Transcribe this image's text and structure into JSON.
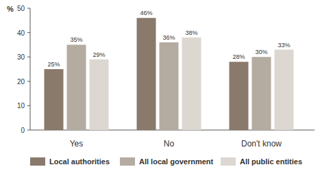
{
  "chart_data": {
    "type": "bar",
    "y_label": "%",
    "categories": [
      "Yes",
      "No",
      "Don't know"
    ],
    "series": [
      {
        "name": "Local authorities",
        "color": "#8a7a6c",
        "values": [
          25,
          46,
          28
        ],
        "value_labels": [
          "25%",
          "46%",
          "28%"
        ]
      },
      {
        "name": "All local government",
        "color": "#b4aba1",
        "values": [
          35,
          36,
          30
        ],
        "value_labels": [
          "35%",
          "36%",
          "30%"
        ]
      },
      {
        "name": "All public entities",
        "color": "#ddd7d1",
        "values": [
          29,
          38,
          33
        ],
        "value_labels": [
          "29%",
          "38%",
          "33%"
        ]
      }
    ],
    "ylim": [
      0,
      50
    ],
    "yticks": [
      0,
      10,
      20,
      30,
      40,
      50
    ],
    "grid": false,
    "data_labels": true,
    "legend": "bottom"
  }
}
